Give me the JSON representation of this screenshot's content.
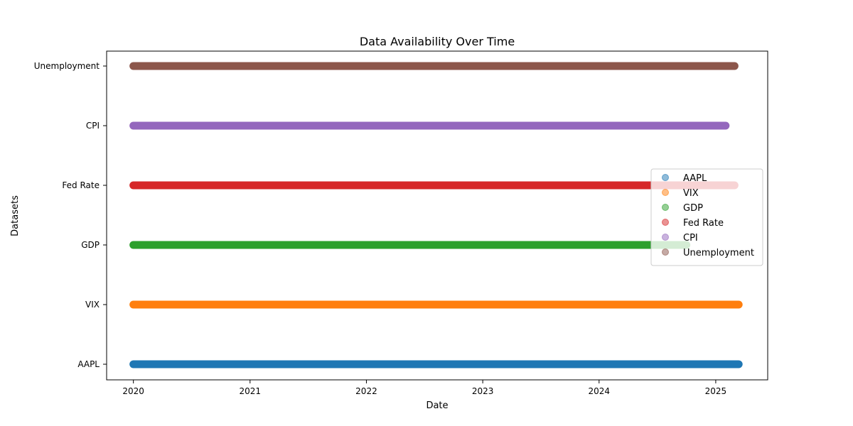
{
  "chart_data": {
    "type": "scatter",
    "title": "Data Availability Over Time",
    "xlabel": "Date",
    "ylabel": "Datasets",
    "x_type": "date",
    "xlim": [
      "2019-10-09",
      "2025-06-13"
    ],
    "x_ticks": [
      "2020-01-01",
      "2021-01-01",
      "2022-01-01",
      "2023-01-01",
      "2024-01-01",
      "2025-01-01"
    ],
    "x_tick_labels": [
      "2020",
      "2021",
      "2022",
      "2023",
      "2024",
      "2025"
    ],
    "categories": [
      "AAPL",
      "VIX",
      "GDP",
      "Fed Rate",
      "CPI",
      "Unemployment"
    ],
    "grid": false,
    "legend_position": "center right",
    "series": [
      {
        "name": "AAPL",
        "color": "#1f77b4",
        "start": "2020-01-01",
        "end": "2025-03-14"
      },
      {
        "name": "VIX",
        "color": "#ff7f0e",
        "start": "2020-01-01",
        "end": "2025-03-14"
      },
      {
        "name": "GDP",
        "color": "#2ca02c",
        "start": "2020-01-01",
        "end": "2024-10-01"
      },
      {
        "name": "Fed Rate",
        "color": "#d62728",
        "start": "2020-01-01",
        "end": "2025-03-01"
      },
      {
        "name": "CPI",
        "color": "#9467bd",
        "start": "2020-01-01",
        "end": "2025-02-01"
      },
      {
        "name": "Unemployment",
        "color": "#8c564b",
        "start": "2020-01-01",
        "end": "2025-03-01"
      }
    ]
  }
}
